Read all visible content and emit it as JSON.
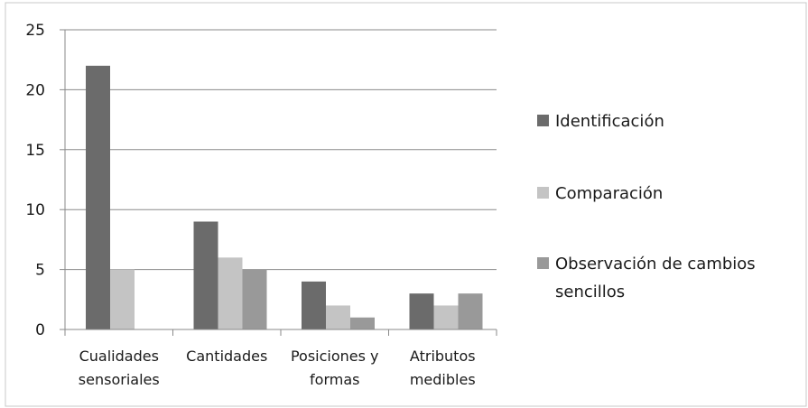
{
  "chart_data": {
    "type": "bar",
    "categories": [
      [
        "Cualidades",
        "sensoriales"
      ],
      [
        "Cantidades"
      ],
      [
        "Posiciones y",
        "formas"
      ],
      [
        "Atributos",
        "medibles"
      ]
    ],
    "series": [
      {
        "name": "Identificación",
        "values": [
          22,
          9,
          4,
          3
        ],
        "color": "#6b6b6b"
      },
      {
        "name": "Comparación",
        "values": [
          5,
          6,
          2,
          2
        ],
        "color": "#c4c4c4"
      },
      {
        "name": "Observación de cambios sencillos",
        "values": [
          0,
          5,
          1,
          3
        ],
        "color": "#999999"
      }
    ],
    "legend_lines": [
      [
        "Identificación"
      ],
      [
        "Comparación"
      ],
      [
        "Observación de cambios",
        "sencillos"
      ]
    ],
    "ylim": [
      0,
      25
    ],
    "yticks": [
      0,
      5,
      10,
      15,
      20,
      25
    ],
    "grid": true,
    "legend_position": "right"
  }
}
